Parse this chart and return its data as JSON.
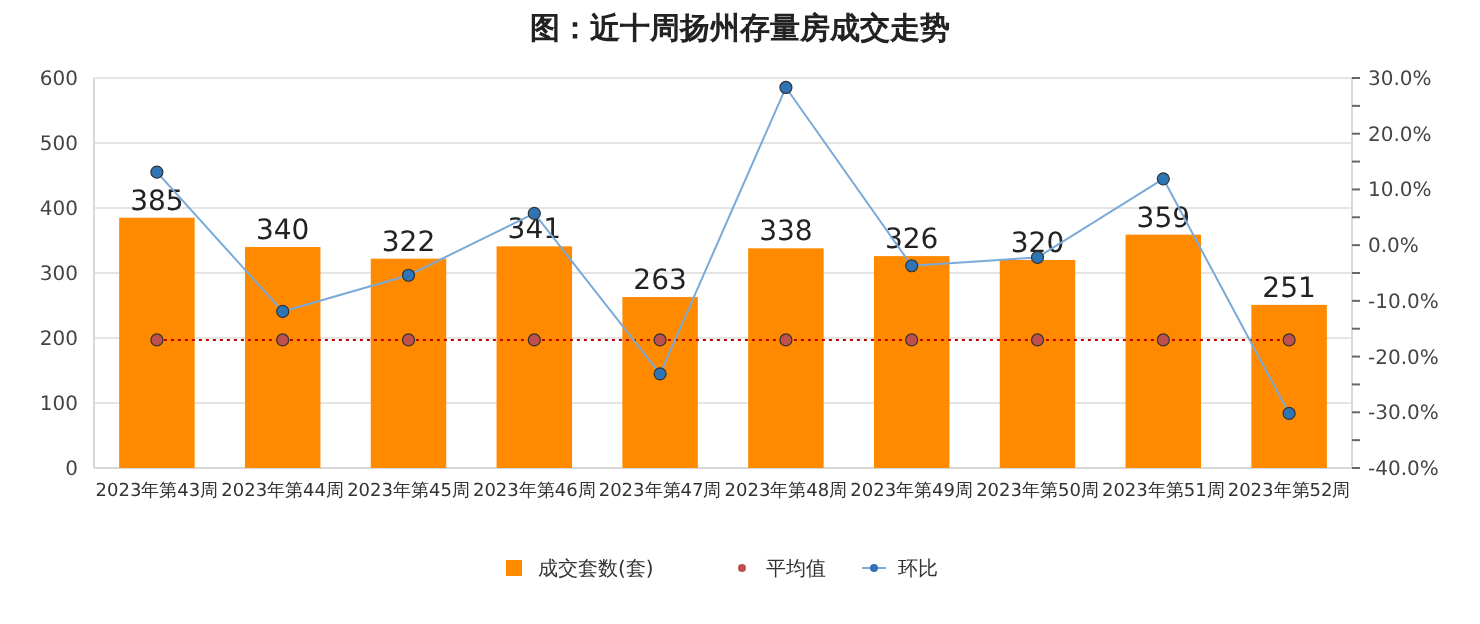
{
  "chart_data": {
    "type": "bar",
    "title": "图：近十周扬州存量房成交走势",
    "categories": [
      "2023年第43周",
      "2023年第44周",
      "2023年第45周",
      "2023年第46周",
      "2023年第47周",
      "2023年第48周",
      "2023年第49周",
      "2023年第50周",
      "2023年第51周",
      "2023年第52周"
    ],
    "series": [
      {
        "name": "成交套数(套)",
        "color": "#ff8a00",
        "values": [
          385,
          340,
          322,
          341,
          263,
          338,
          326,
          320,
          359,
          251
        ],
        "value_labels": [
          "385",
          "340",
          "322",
          "341",
          "263",
          "338",
          "326",
          "320",
          "359",
          "251"
        ]
      },
      {
        "name": "平均值",
        "type": "line",
        "color": "#c0504d",
        "line_style": "dotted",
        "values": [
          197,
          197,
          197,
          197,
          197,
          197,
          197,
          197,
          197,
          197
        ]
      },
      {
        "name": "环比",
        "type": "line",
        "axis": "y2",
        "color": "#2e75b6",
        "line_style": "solid",
        "values": [
          13.1,
          -11.9,
          -5.4,
          5.7,
          -23.1,
          28.3,
          -3.7,
          -2.2,
          11.9,
          -30.2
        ]
      }
    ],
    "ylim": [
      0,
      600
    ],
    "yticks": [
      0,
      100,
      200,
      300,
      400,
      500,
      600
    ],
    "y2lim": [
      -40,
      30
    ],
    "y2ticks": [
      {
        "value": -40,
        "label": "-40.0%"
      },
      {
        "value": -35,
        "label": null
      },
      {
        "value": -30,
        "label": "-30.0%"
      },
      {
        "value": -25,
        "label": null
      },
      {
        "value": -20,
        "label": "-20.0%"
      },
      {
        "value": -15,
        "label": null
      },
      {
        "value": -10,
        "label": "-10.0%"
      },
      {
        "value": -5,
        "label": null
      },
      {
        "value": 0,
        "label": "0.0%"
      },
      {
        "value": 5,
        "label": null
      },
      {
        "value": 10,
        "label": "10.0%"
      },
      {
        "value": 15,
        "label": null
      },
      {
        "value": 20,
        "label": "20.0%"
      },
      {
        "value": 25,
        "label": null
      },
      {
        "value": 30,
        "label": "30.0%"
      }
    ],
    "grid": "y",
    "legend": "bottom",
    "marker": "circle"
  }
}
